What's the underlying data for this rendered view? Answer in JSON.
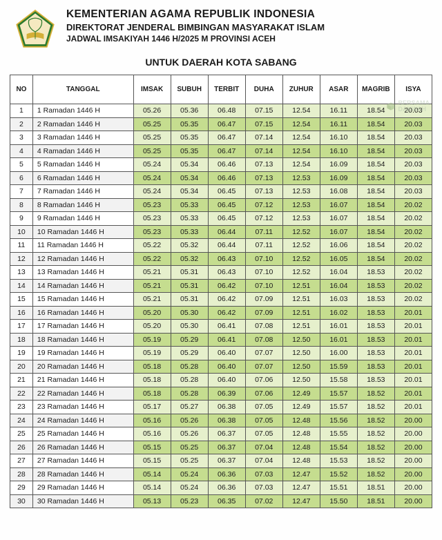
{
  "header": {
    "title1": "KEMENTERIAN AGAMA REPUBLIK INDONESIA",
    "title2": "DIREKTORAT JENDERAL BIMBINGAN MASYARAKAT ISLAM",
    "title3": "JADWAL IMSAKIYAH 1446 H/2025 M PROVINSI ACEH",
    "subtitle": "UNTUK DAERAH KOTA SABANG"
  },
  "logo": {
    "penta_fill": "#2d7a2d",
    "penta_stroke": "#d4af37",
    "inner_fill": "#f5e9c0",
    "book_fill": "#d4af37"
  },
  "watermark": {
    "line1": "BERSAMA",
    "line2": "DAKWAH",
    "color": "#a8c090"
  },
  "table": {
    "columns": [
      "NO",
      "TANGGAL",
      "IMSAK",
      "SUBUH",
      "TERBIT",
      "DUHA",
      "ZUHUR",
      "ASAR",
      "MAGRIB",
      "ISYA"
    ],
    "even_row_time_bg": "#c5dd8f",
    "odd_row_time_bg": "#e6f0cc",
    "border_color": "#555555",
    "rows": [
      {
        "no": "1",
        "tanggal": "1 Ramadan 1446 H",
        "times": [
          "05.26",
          "05.36",
          "06.48",
          "07.15",
          "12.54",
          "16.11",
          "18.54",
          "20.03"
        ]
      },
      {
        "no": "2",
        "tanggal": "2 Ramadan 1446 H",
        "times": [
          "05.25",
          "05.35",
          "06.47",
          "07.15",
          "12.54",
          "16.11",
          "18.54",
          "20.03"
        ]
      },
      {
        "no": "3",
        "tanggal": "3 Ramadan 1446 H",
        "times": [
          "05.25",
          "05.35",
          "06.47",
          "07.14",
          "12.54",
          "16.10",
          "18.54",
          "20.03"
        ]
      },
      {
        "no": "4",
        "tanggal": "4 Ramadan 1446 H",
        "times": [
          "05.25",
          "05.35",
          "06.47",
          "07.14",
          "12.54",
          "16.10",
          "18.54",
          "20.03"
        ]
      },
      {
        "no": "5",
        "tanggal": "5 Ramadan 1446 H",
        "times": [
          "05.24",
          "05.34",
          "06.46",
          "07.13",
          "12.54",
          "16.09",
          "18.54",
          "20.03"
        ]
      },
      {
        "no": "6",
        "tanggal": "6 Ramadan 1446 H",
        "times": [
          "05.24",
          "05.34",
          "06.46",
          "07.13",
          "12.53",
          "16.09",
          "18.54",
          "20.03"
        ]
      },
      {
        "no": "7",
        "tanggal": "7 Ramadan 1446 H",
        "times": [
          "05.24",
          "05.34",
          "06.45",
          "07.13",
          "12.53",
          "16.08",
          "18.54",
          "20.03"
        ]
      },
      {
        "no": "8",
        "tanggal": "8 Ramadan 1446 H",
        "times": [
          "05.23",
          "05.33",
          "06.45",
          "07.12",
          "12.53",
          "16.07",
          "18.54",
          "20.02"
        ]
      },
      {
        "no": "9",
        "tanggal": "9 Ramadan 1446 H",
        "times": [
          "05.23",
          "05.33",
          "06.45",
          "07.12",
          "12.53",
          "16.07",
          "18.54",
          "20.02"
        ]
      },
      {
        "no": "10",
        "tanggal": "10 Ramadan 1446 H",
        "times": [
          "05.23",
          "05.33",
          "06.44",
          "07.11",
          "12.52",
          "16.07",
          "18.54",
          "20.02"
        ]
      },
      {
        "no": "11",
        "tanggal": "11 Ramadan 1446 H",
        "times": [
          "05.22",
          "05.32",
          "06.44",
          "07.11",
          "12.52",
          "16.06",
          "18.54",
          "20.02"
        ]
      },
      {
        "no": "12",
        "tanggal": "12 Ramadan 1446 H",
        "times": [
          "05.22",
          "05.32",
          "06.43",
          "07.10",
          "12.52",
          "16.05",
          "18.54",
          "20.02"
        ]
      },
      {
        "no": "13",
        "tanggal": "13 Ramadan 1446 H",
        "times": [
          "05.21",
          "05.31",
          "06.43",
          "07.10",
          "12.52",
          "16.04",
          "18.53",
          "20.02"
        ]
      },
      {
        "no": "14",
        "tanggal": "14 Ramadan 1446 H",
        "times": [
          "05.21",
          "05.31",
          "06.42",
          "07.10",
          "12.51",
          "16.04",
          "18.53",
          "20.02"
        ]
      },
      {
        "no": "15",
        "tanggal": "15 Ramadan 1446 H",
        "times": [
          "05.21",
          "05.31",
          "06.42",
          "07.09",
          "12.51",
          "16.03",
          "18.53",
          "20.02"
        ]
      },
      {
        "no": "16",
        "tanggal": "16 Ramadan 1446 H",
        "times": [
          "05.20",
          "05.30",
          "06.42",
          "07.09",
          "12.51",
          "16.02",
          "18.53",
          "20.01"
        ]
      },
      {
        "no": "17",
        "tanggal": "17 Ramadan 1446 H",
        "times": [
          "05.20",
          "05.30",
          "06.41",
          "07.08",
          "12.51",
          "16.01",
          "18.53",
          "20.01"
        ]
      },
      {
        "no": "18",
        "tanggal": "18 Ramadan 1446 H",
        "times": [
          "05.19",
          "05.29",
          "06.41",
          "07.08",
          "12.50",
          "16.01",
          "18.53",
          "20.01"
        ]
      },
      {
        "no": "19",
        "tanggal": "19 Ramadan 1446 H",
        "times": [
          "05.19",
          "05.29",
          "06.40",
          "07.07",
          "12.50",
          "16.00",
          "18.53",
          "20.01"
        ]
      },
      {
        "no": "20",
        "tanggal": "20 Ramadan 1446 H",
        "times": [
          "05.18",
          "05.28",
          "06.40",
          "07.07",
          "12.50",
          "15.59",
          "18.53",
          "20.01"
        ]
      },
      {
        "no": "21",
        "tanggal": "21 Ramadan 1446 H",
        "times": [
          "05.18",
          "05.28",
          "06.40",
          "07.06",
          "12.50",
          "15.58",
          "18.53",
          "20.01"
        ]
      },
      {
        "no": "22",
        "tanggal": "22 Ramadan 1446 H",
        "times": [
          "05.18",
          "05.28",
          "06.39",
          "07.06",
          "12.49",
          "15.57",
          "18.52",
          "20.01"
        ]
      },
      {
        "no": "23",
        "tanggal": "23 Ramadan 1446 H",
        "times": [
          "05.17",
          "05.27",
          "06.38",
          "07.05",
          "12.49",
          "15.57",
          "18.52",
          "20.01"
        ]
      },
      {
        "no": "24",
        "tanggal": "24 Ramadan 1446 H",
        "times": [
          "05.16",
          "05.26",
          "06.38",
          "07.05",
          "12.48",
          "15.56",
          "18.52",
          "20.00"
        ]
      },
      {
        "no": "25",
        "tanggal": "25 Ramadan 1446 H",
        "times": [
          "05.16",
          "05.26",
          "06.37",
          "07.05",
          "12.48",
          "15.55",
          "18.52",
          "20.00"
        ]
      },
      {
        "no": "26",
        "tanggal": "26 Ramadan 1446 H",
        "times": [
          "05.15",
          "05.25",
          "06.37",
          "07.04",
          "12.48",
          "15.54",
          "18.52",
          "20.00"
        ]
      },
      {
        "no": "27",
        "tanggal": "27 Ramadan 1446 H",
        "times": [
          "05.15",
          "05.25",
          "06.37",
          "07.04",
          "12.48",
          "15.53",
          "18.52",
          "20.00"
        ]
      },
      {
        "no": "28",
        "tanggal": "28 Ramadan 1446 H",
        "times": [
          "05.14",
          "05.24",
          "06.36",
          "07.03",
          "12.47",
          "15.52",
          "18.52",
          "20.00"
        ]
      },
      {
        "no": "29",
        "tanggal": "29 Ramadan 1446 H",
        "times": [
          "05.14",
          "05.24",
          "06.36",
          "07.03",
          "12.47",
          "15.51",
          "18.51",
          "20.00"
        ]
      },
      {
        "no": "30",
        "tanggal": "30 Ramadan 1446 H",
        "times": [
          "05.13",
          "05.23",
          "06.35",
          "07.02",
          "12.47",
          "15.50",
          "18.51",
          "20.00"
        ]
      }
    ]
  }
}
